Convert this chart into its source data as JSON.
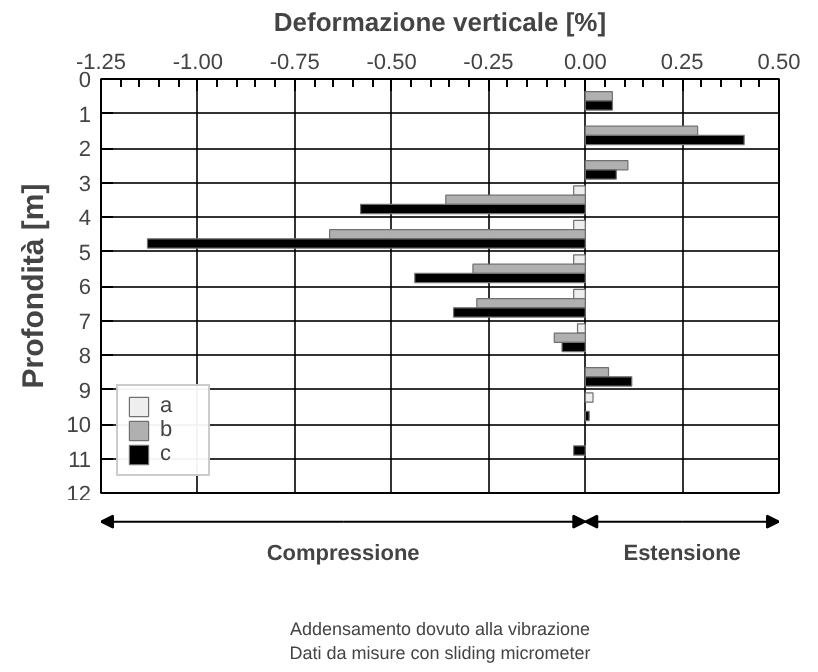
{
  "chart_data": {
    "type": "bar",
    "orientation": "horizontal",
    "xlabel": "Deformazione verticale [%]",
    "ylabel": "Profondità [m]",
    "x": [
      0.5,
      1.5,
      2.5,
      3.5,
      4.5,
      5.5,
      6.5,
      7.5,
      8.5,
      9.5,
      10.5
    ],
    "series": [
      {
        "name": "a",
        "color": "#eeeeee",
        "values": [
          null,
          null,
          null,
          -0.03,
          -0.03,
          -0.03,
          -0.03,
          -0.02,
          null,
          0.02,
          null
        ]
      },
      {
        "name": "b",
        "color": "#b0b0b0",
        "values": [
          0.07,
          0.29,
          0.11,
          -0.36,
          -0.66,
          -0.29,
          -0.28,
          -0.08,
          0.06,
          null,
          null
        ]
      },
      {
        "name": "c",
        "color": "#000000",
        "values": [
          0.07,
          0.41,
          0.08,
          -0.58,
          -1.13,
          -0.44,
          -0.34,
          -0.06,
          0.12,
          0.01,
          -0.03
        ]
      }
    ],
    "xlim": [
      -1.25,
      0.5
    ],
    "xticks": [
      {
        "value": -1.25,
        "label": "-1.25"
      },
      {
        "value": -1,
        "label": "-1.00"
      },
      {
        "value": -0.75,
        "label": "-0.75"
      },
      {
        "value": -0.5,
        "label": "-0.50"
      },
      {
        "value": -0.25,
        "label": "-0.25"
      },
      {
        "value": 0,
        "label": "0.00"
      },
      {
        "value": 0.25,
        "label": "0.25"
      },
      {
        "value": 0.5,
        "label": "0.50"
      }
    ],
    "ylim": [
      12,
      0
    ],
    "yticks": [
      0,
      1,
      2,
      3,
      4,
      5,
      6,
      7,
      8,
      9,
      10,
      11,
      12
    ],
    "grid": true,
    "legend": "bottom left",
    "annotations": [
      "Compressione",
      "Estensione",
      "Addensamento dovuto alla vibrazione",
      "Dati da misure con sliding micrometer"
    ]
  }
}
